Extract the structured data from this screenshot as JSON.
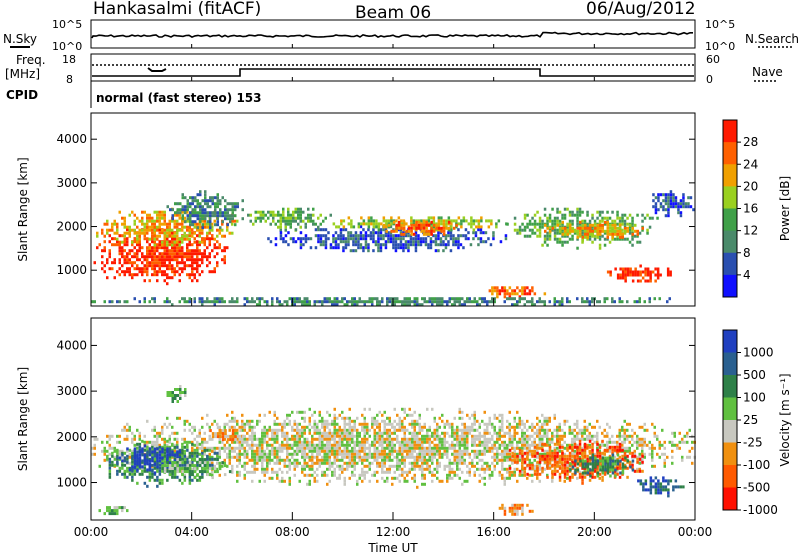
{
  "header": {
    "station": "Hankasalmi (fitACF)",
    "beam": "Beam 06",
    "date": "06/Aug/2012"
  },
  "strip": {
    "nsky_label": "N.Sky",
    "nsearch_label": "N.Search",
    "nave_label": "Nave",
    "freq_label_line1": "Freq.",
    "freq_label_line2": "[MHz]",
    "cpid_label": "CPID",
    "cpid_text": "normal (fast stereo) 153",
    "noise_left_ticks": [
      "10^5",
      "10^0"
    ],
    "noise_right_ticks": [
      "10^5",
      "10^0"
    ],
    "freq_left_ticks": [
      "18",
      "8"
    ],
    "nave_right_ticks": [
      "60",
      "0"
    ]
  },
  "colors": {
    "power": [
      "#1010ff",
      "#2a4fb0",
      "#4a8a6a",
      "#3fa048",
      "#9ad020",
      "#f0a000",
      "#ff6000",
      "#ff1a00"
    ],
    "velocity": [
      "#2040c0",
      "#2a6090",
      "#2e8048",
      "#60c040",
      "#c8c8c0",
      "#f09010",
      "#ff5a00",
      "#ff1000"
    ]
  },
  "chart_data": [
    {
      "type": "heatmap",
      "ylabel": "Slant Range [km]",
      "xlabel": "Time UT",
      "x_ticks": [
        "00:00",
        "04:00",
        "08:00",
        "12:00",
        "16:00",
        "20:00",
        "00:00"
      ],
      "y_ticks": [
        "1000",
        "2000",
        "3000",
        "4000"
      ],
      "ylim": [
        180,
        4600
      ],
      "xlim_hours": [
        0,
        24
      ],
      "colorbar_label": "Power [dB]",
      "colorbar_ticks": [
        "4",
        "8",
        "12",
        "16",
        "20",
        "24",
        "28"
      ],
      "regions": [
        {
          "x0": 0.0,
          "x1": 5.5,
          "y0": 650,
          "y1": 2100,
          "level": 7
        },
        {
          "x0": 0.2,
          "x1": 5.8,
          "y0": 1500,
          "y1": 2500,
          "level": 5
        },
        {
          "x0": 3.0,
          "x1": 6.0,
          "y0": 1900,
          "y1": 2900,
          "level": 2
        },
        {
          "x0": 6.0,
          "x1": 9.5,
          "y0": 1900,
          "y1": 2500,
          "level": 3
        },
        {
          "x0": 7.0,
          "x1": 16.5,
          "y0": 1400,
          "y1": 2100,
          "level": 1
        },
        {
          "x0": 9.5,
          "x1": 16.5,
          "y0": 1900,
          "y1": 2300,
          "level": 4
        },
        {
          "x0": 11.5,
          "x1": 14.5,
          "y0": 1800,
          "y1": 2200,
          "level": 6
        },
        {
          "x0": 15.5,
          "x1": 18.0,
          "y0": 400,
          "y1": 700,
          "level": 6
        },
        {
          "x0": 16.5,
          "x1": 22.5,
          "y0": 1500,
          "y1": 2500,
          "level": 3
        },
        {
          "x0": 18.0,
          "x1": 22.0,
          "y0": 1700,
          "y1": 2200,
          "level": 5
        },
        {
          "x0": 20.5,
          "x1": 23.0,
          "y0": 700,
          "y1": 1200,
          "level": 7
        },
        {
          "x0": 22.0,
          "x1": 24.0,
          "y0": 2200,
          "y1": 2900,
          "level": 1
        },
        {
          "x0": 0.0,
          "x1": 24.0,
          "y0": 200,
          "y1": 450,
          "level": 2
        }
      ]
    },
    {
      "type": "heatmap",
      "ylabel": "Slant Range [km]",
      "xlabel": "Time UT",
      "x_ticks": [
        "00:00",
        "04:00",
        "08:00",
        "12:00",
        "16:00",
        "20:00",
        "00:00"
      ],
      "y_ticks": [
        "1000",
        "2000",
        "3000",
        "4000"
      ],
      "ylim": [
        180,
        4600
      ],
      "xlim_hours": [
        0,
        24
      ],
      "colorbar_label": "Velocity [m s⁻¹]",
      "colorbar_ticks": [
        "1000",
        "500",
        "100",
        "25",
        "-25",
        "-100",
        "-500",
        "-1000"
      ],
      "regions": [
        {
          "x0": 0.0,
          "x1": 24.0,
          "y0": 900,
          "y1": 2700,
          "level": 4
        },
        {
          "x0": 0.5,
          "x1": 5.0,
          "y0": 900,
          "y1": 2000,
          "level": 2
        },
        {
          "x0": 1.0,
          "x1": 3.5,
          "y0": 1200,
          "y1": 1900,
          "level": 0
        },
        {
          "x0": 2.5,
          "x1": 5.5,
          "y0": 1100,
          "y1": 1600,
          "level": 3
        },
        {
          "x0": 4.5,
          "x1": 6.0,
          "y0": 1900,
          "y1": 2300,
          "level": 5
        },
        {
          "x0": 3.0,
          "x1": 3.8,
          "y0": 2700,
          "y1": 3200,
          "level": 3
        },
        {
          "x0": 0.2,
          "x1": 1.5,
          "y0": 300,
          "y1": 550,
          "level": 3
        },
        {
          "x0": 16.5,
          "x1": 22.0,
          "y0": 1000,
          "y1": 2000,
          "level": 6
        },
        {
          "x0": 19.0,
          "x1": 21.5,
          "y0": 1100,
          "y1": 1700,
          "level": 2
        },
        {
          "x0": 16.0,
          "x1": 17.5,
          "y0": 300,
          "y1": 600,
          "level": 5
        },
        {
          "x0": 21.5,
          "x1": 23.5,
          "y0": 700,
          "y1": 1200,
          "level": 1
        }
      ]
    }
  ]
}
